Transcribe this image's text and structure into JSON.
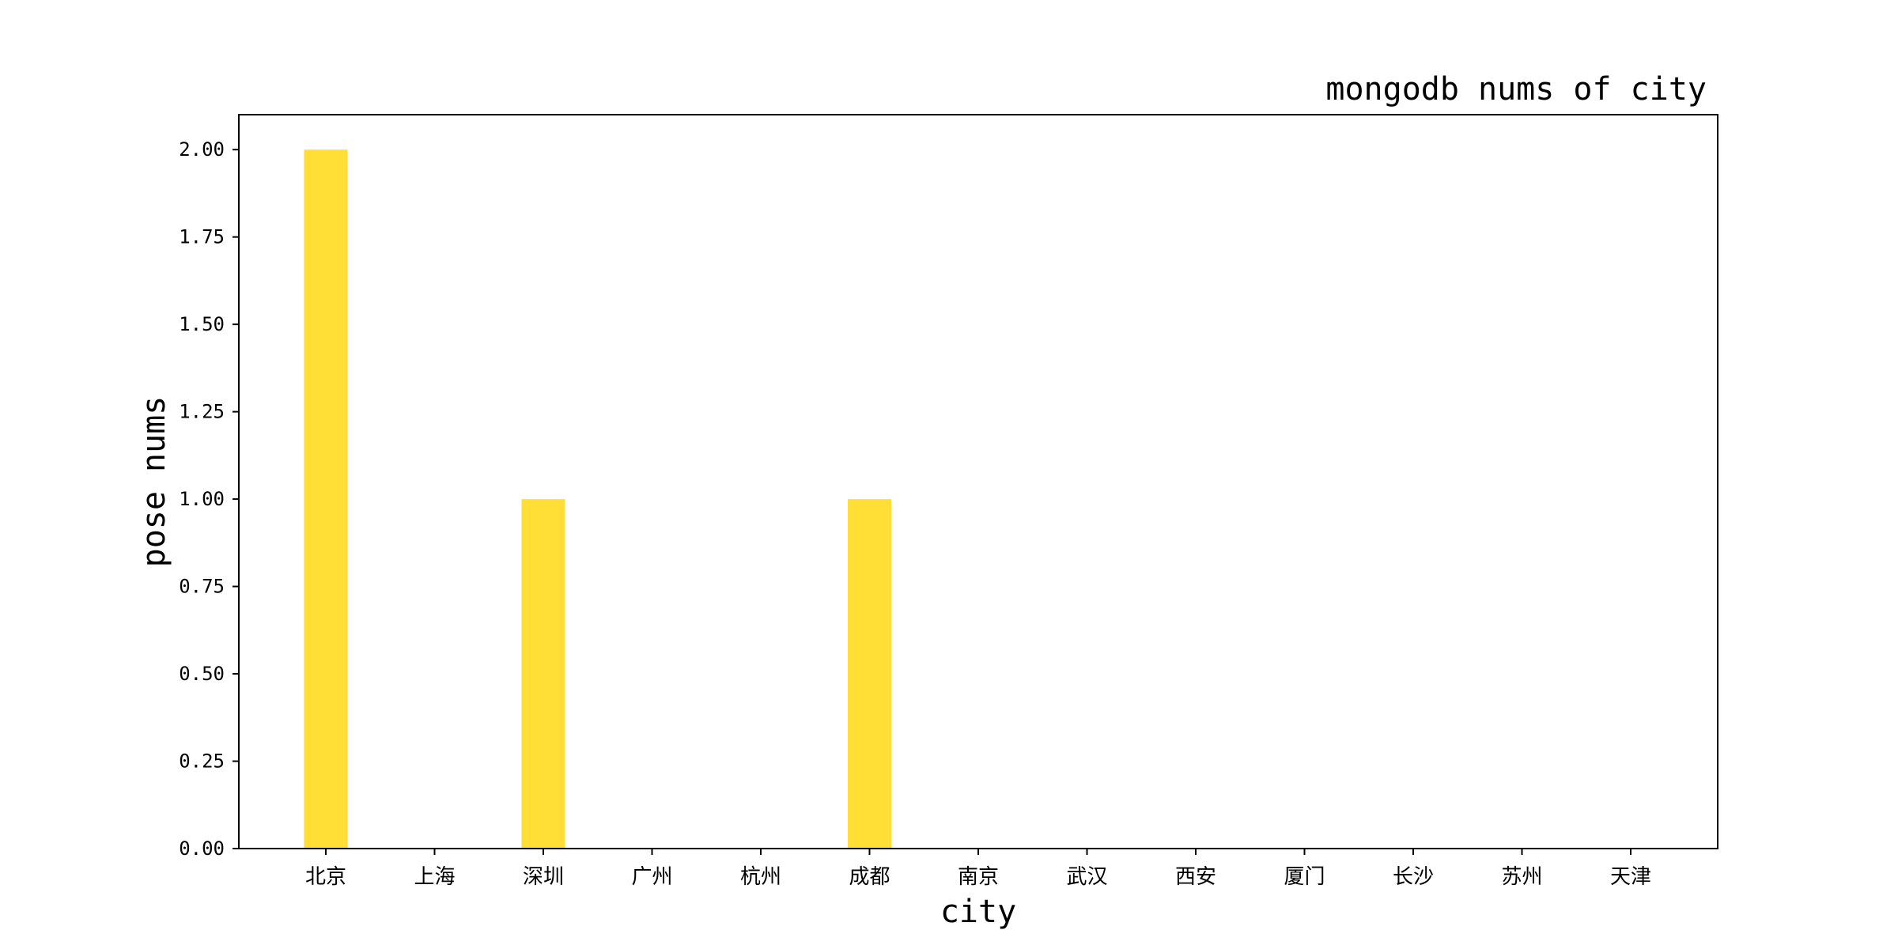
{
  "chart_data": {
    "type": "bar",
    "title": "mongodb nums of city",
    "xlabel": "city",
    "ylabel": "pose nums",
    "categories": [
      "北京",
      "上海",
      "深圳",
      "广州",
      "杭州",
      "成都",
      "南京",
      "武汉",
      "西安",
      "厦门",
      "长沙",
      "苏州",
      "天津"
    ],
    "values": [
      2,
      0,
      1,
      0,
      0,
      1,
      0,
      0,
      0,
      0,
      0,
      0,
      0
    ],
    "ylim": [
      0,
      2.1
    ],
    "yticks": [
      "0.00",
      "0.25",
      "0.50",
      "0.75",
      "1.00",
      "1.25",
      "1.50",
      "1.75",
      "2.00"
    ],
    "bar_color": "#FFDF36",
    "grid": false,
    "legend": "none"
  }
}
